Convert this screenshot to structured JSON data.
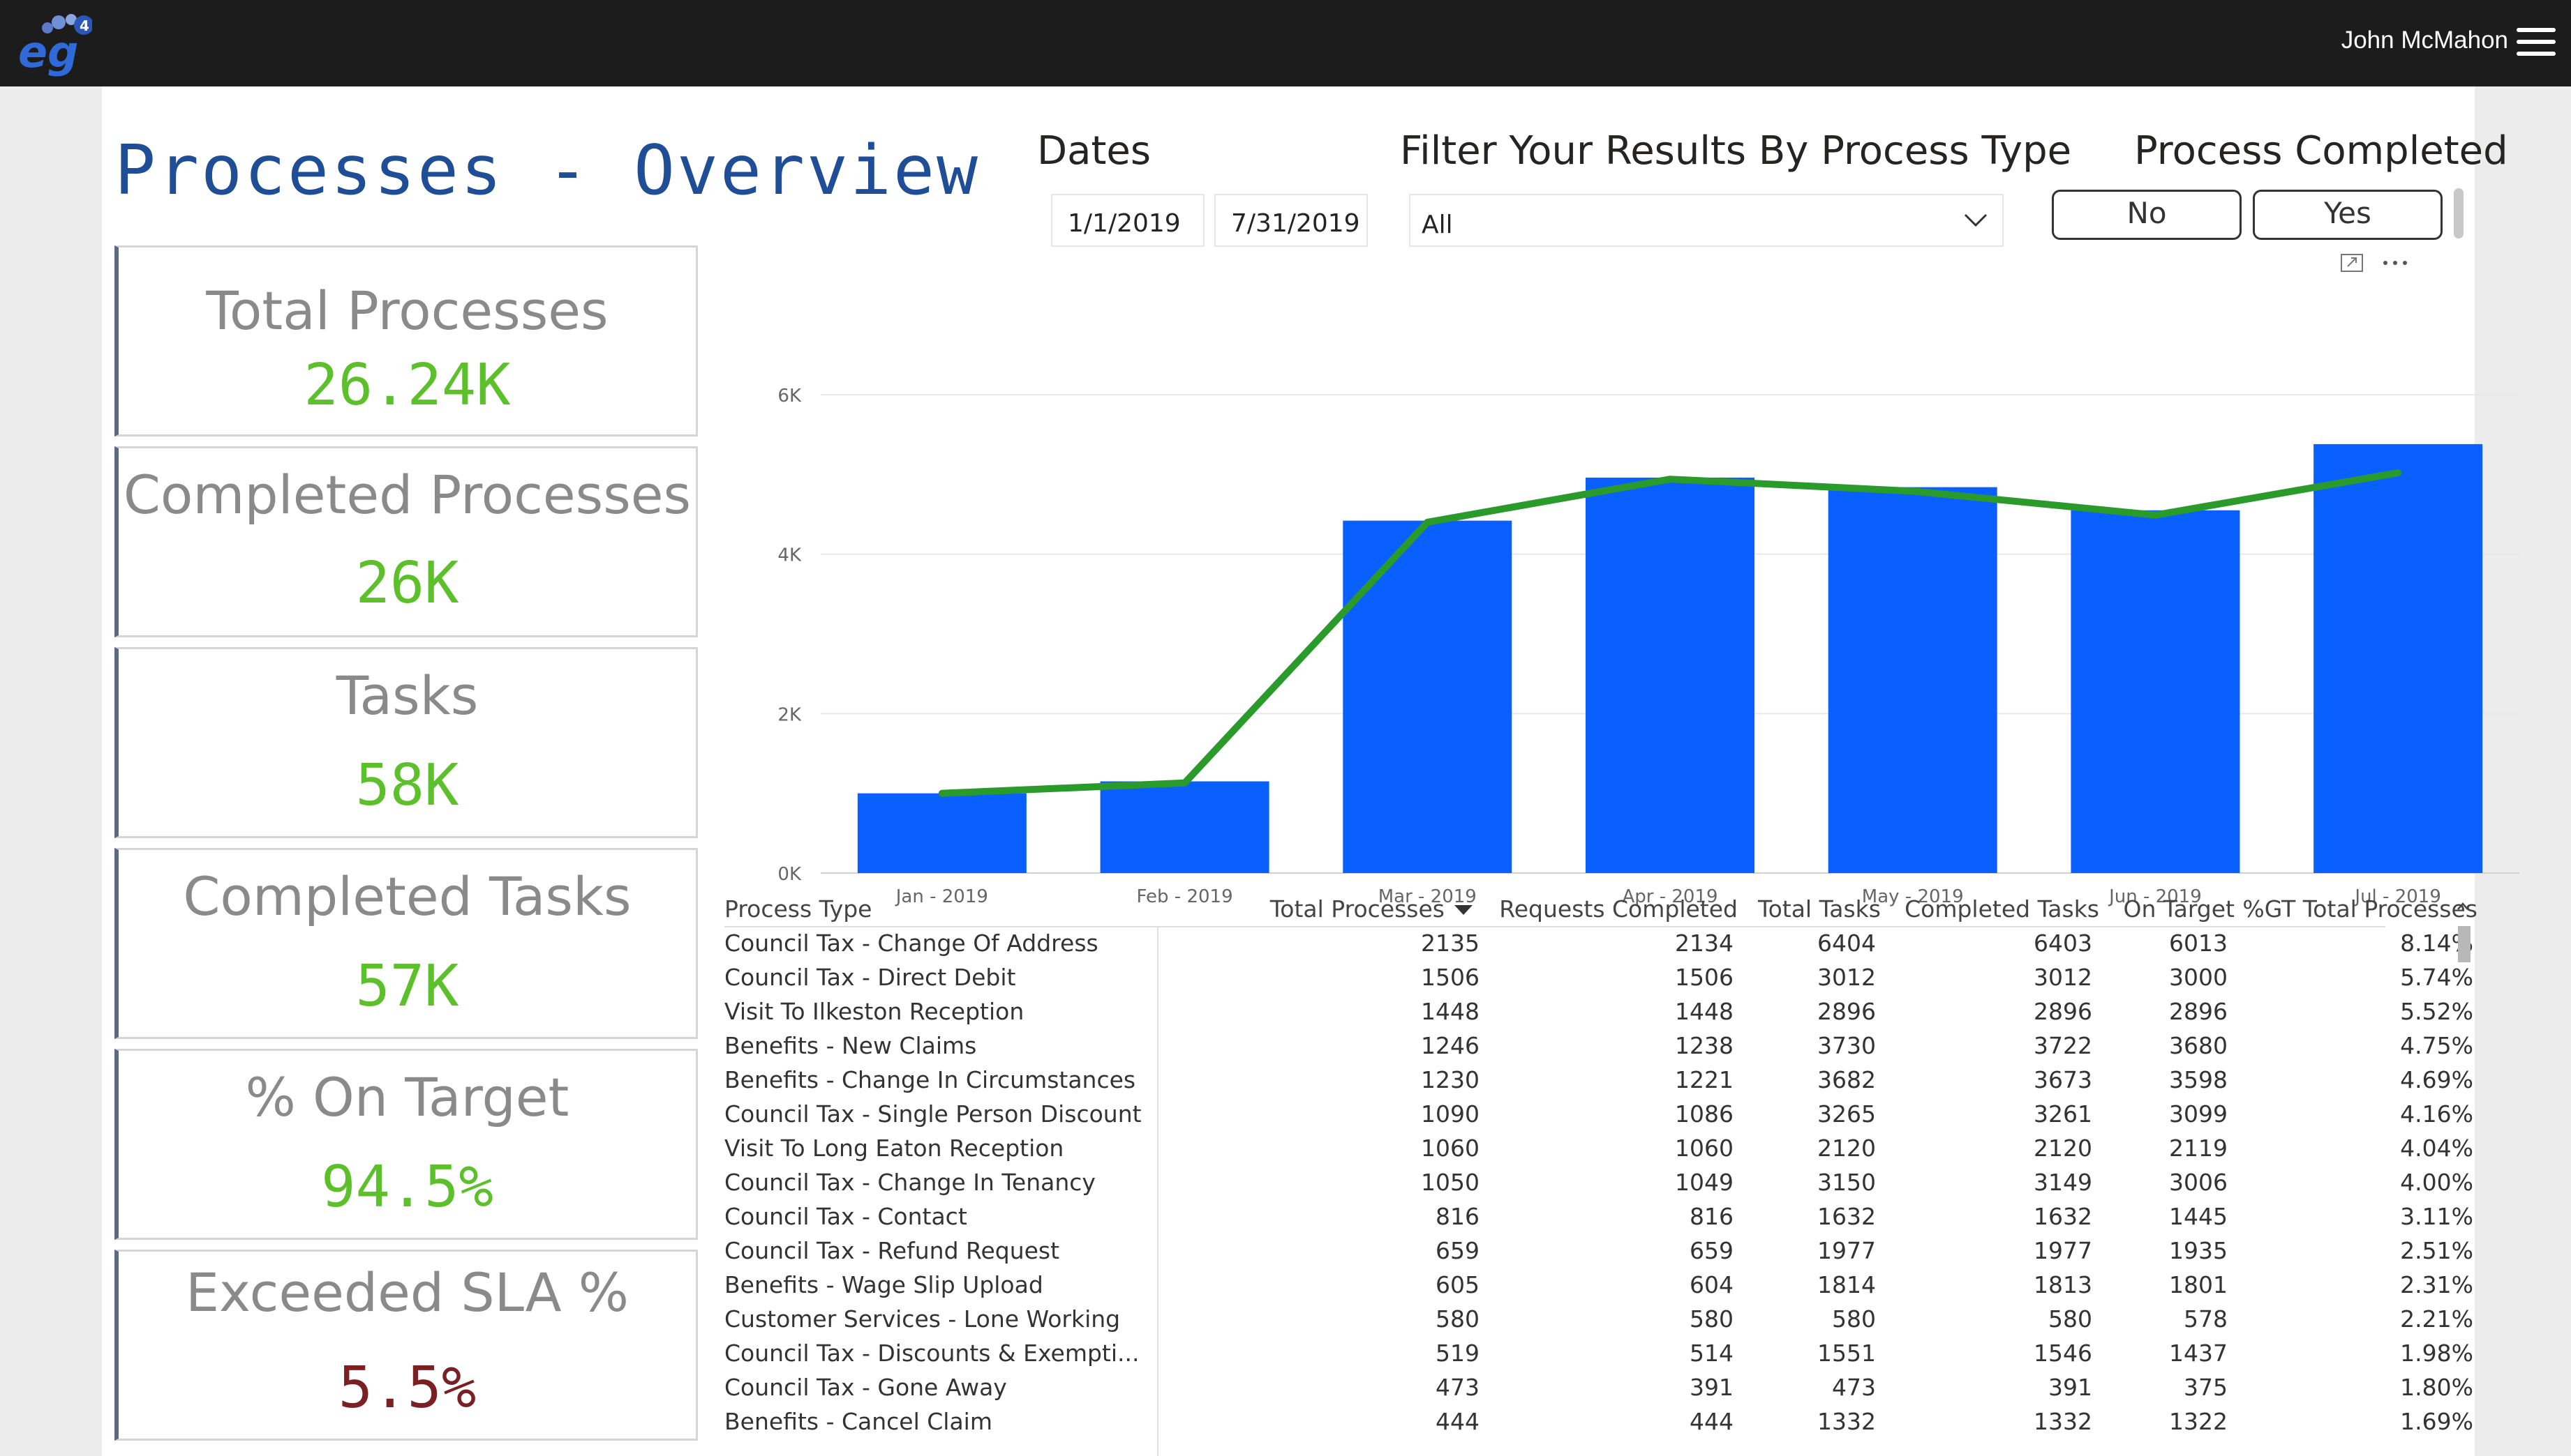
{
  "header": {
    "user_name": "John McMahon",
    "logo_text": "eg4"
  },
  "page_title": "Processes - Overview",
  "kpis": [
    {
      "label": "Total Processes",
      "value": "26.24K"
    },
    {
      "label": "Completed Processes",
      "value": "26K"
    },
    {
      "label": "Tasks",
      "value": "58K"
    },
    {
      "label": "Completed Tasks",
      "value": "57K"
    },
    {
      "label": "% On Target",
      "value": "94.5%"
    },
    {
      "label": "Exceeded SLA %",
      "value": "5.5%"
    }
  ],
  "filters": {
    "dates_title": "Dates",
    "start_date": "1/1/2019",
    "end_date": "7/31/2019",
    "process_type_title": "Filter Your Results By Process Type",
    "process_type_value": "All",
    "completed_title": "Process Completed",
    "completed_no": "No",
    "completed_yes": "Yes"
  },
  "chart_data": {
    "type": "bar",
    "categories": [
      "Jan - 2019",
      "Feb - 2019",
      "Mar - 2019",
      "Apr - 2019",
      "May - 2019",
      "Jun - 2019",
      "Jul - 2019"
    ],
    "series": [
      {
        "type": "bar",
        "values": [
          1000,
          1150,
          4420,
          4960,
          4840,
          4550,
          5380
        ],
        "color": "#0a60ff"
      },
      {
        "type": "line",
        "values": [
          1000,
          1130,
          4400,
          4940,
          4790,
          4490,
          5020
        ],
        "color": "#2a9a2a"
      }
    ],
    "ylim": [
      0,
      6000
    ],
    "yticks": [
      "0K",
      "2K",
      "4K",
      "6K"
    ],
    "grid": true
  },
  "table": {
    "columns": [
      "Process Type",
      "Total Processes",
      "Requests Completed",
      "Total Tasks",
      "Completed Tasks",
      "On Target",
      "%GT Total Processes"
    ],
    "rows": [
      [
        "Council Tax - Change Of Address",
        "2135",
        "2134",
        "6404",
        "6403",
        "6013",
        "8.14%"
      ],
      [
        "Council Tax - Direct Debit",
        "1506",
        "1506",
        "3012",
        "3012",
        "3000",
        "5.74%"
      ],
      [
        "Visit To Ilkeston Reception",
        "1448",
        "1448",
        "2896",
        "2896",
        "2896",
        "5.52%"
      ],
      [
        "Benefits - New Claims",
        "1246",
        "1238",
        "3730",
        "3722",
        "3680",
        "4.75%"
      ],
      [
        "Benefits - Change In Circumstances",
        "1230",
        "1221",
        "3682",
        "3673",
        "3598",
        "4.69%"
      ],
      [
        "Council Tax - Single Person Discount",
        "1090",
        "1086",
        "3265",
        "3261",
        "3099",
        "4.16%"
      ],
      [
        "Visit To Long Eaton Reception",
        "1060",
        "1060",
        "2120",
        "2120",
        "2119",
        "4.04%"
      ],
      [
        "Council Tax - Change In Tenancy",
        "1050",
        "1049",
        "3150",
        "3149",
        "3006",
        "4.00%"
      ],
      [
        "Council Tax - Contact",
        "816",
        "816",
        "1632",
        "1632",
        "1445",
        "3.11%"
      ],
      [
        "Council Tax - Refund Request",
        "659",
        "659",
        "1977",
        "1977",
        "1935",
        "2.51%"
      ],
      [
        "Benefits - Wage Slip Upload",
        "605",
        "604",
        "1814",
        "1813",
        "1801",
        "2.31%"
      ],
      [
        "Customer Services - Lone Working",
        "580",
        "580",
        "580",
        "580",
        "578",
        "2.21%"
      ],
      [
        "Council Tax - Discounts & Exempti...",
        "519",
        "514",
        "1551",
        "1546",
        "1437",
        "1.98%"
      ],
      [
        "Council Tax - Gone Away",
        "473",
        "391",
        "473",
        "391",
        "375",
        "1.80%"
      ],
      [
        "Benefits - Cancel Claim",
        "444",
        "444",
        "1332",
        "1332",
        "1322",
        "1.69%"
      ]
    ]
  }
}
